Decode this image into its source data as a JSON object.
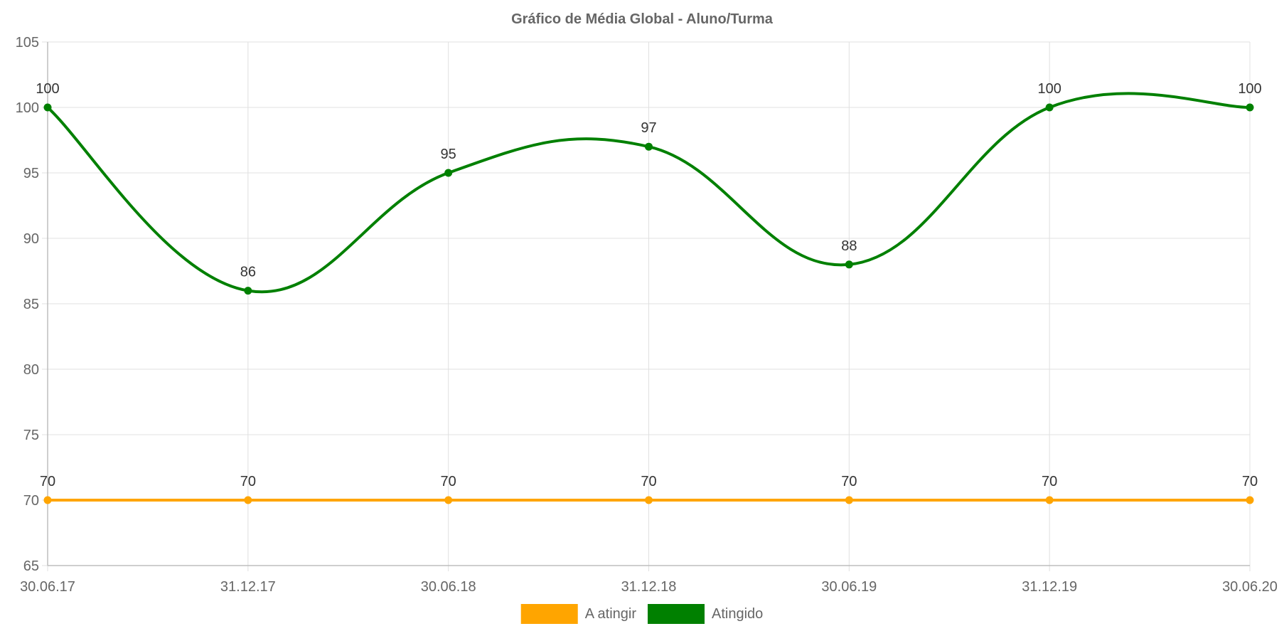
{
  "chart_data": {
    "type": "line",
    "title": "Gráfico de Média Global - Aluno/Turma",
    "xlabel": "",
    "ylabel": "",
    "categories": [
      "30.06.17",
      "31.12.17",
      "30.06.18",
      "31.12.18",
      "30.06.19",
      "31.12.19",
      "30.06.20"
    ],
    "ylim": [
      65,
      105
    ],
    "yticks": [
      65,
      70,
      75,
      80,
      85,
      90,
      95,
      100,
      105
    ],
    "grid": true,
    "legend_position": "bottom",
    "series": [
      {
        "name": "A atingir",
        "color": "#FFA500",
        "values": [
          70,
          70,
          70,
          70,
          70,
          70,
          70
        ]
      },
      {
        "name": "Atingido",
        "color": "#008000",
        "values": [
          100,
          86,
          95,
          97,
          88,
          100,
          100
        ]
      }
    ]
  }
}
